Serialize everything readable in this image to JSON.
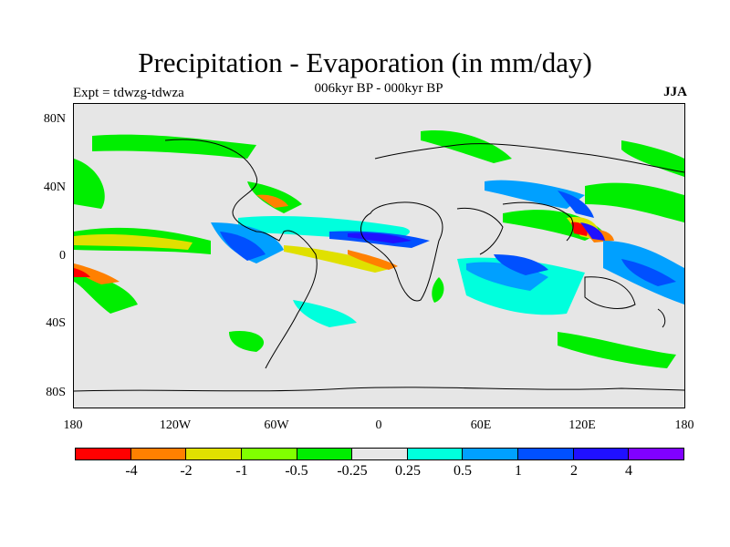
{
  "title": "Precipitation - Evaporation (in mm/day)",
  "subtitle": "006kyr BP - 000kyr BP",
  "experiment": "Expt = tdwzg-tdwza",
  "season": "JJA",
  "map": {
    "background_color": "#e6e6e6",
    "coastline_color": "#000000",
    "lat_labels": [
      "80N",
      "40N",
      "0",
      "40S",
      "80S"
    ],
    "lon_labels": [
      "180",
      "120W",
      "60W",
      "0",
      "60E",
      "120E",
      "180"
    ]
  },
  "colorbar": {
    "colors": [
      "#ff0000",
      "#ff8000",
      "#e0e000",
      "#80ff00",
      "#00ee00",
      "#e6e6e6",
      "#00ffdd",
      "#00a0ff",
      "#0050ff",
      "#2010ff",
      "#8000ff"
    ],
    "labels": [
      "-4",
      "-2",
      "-1",
      "-0.5",
      "-0.25",
      "0.25",
      "0.5",
      "1",
      "2",
      "4"
    ]
  }
}
